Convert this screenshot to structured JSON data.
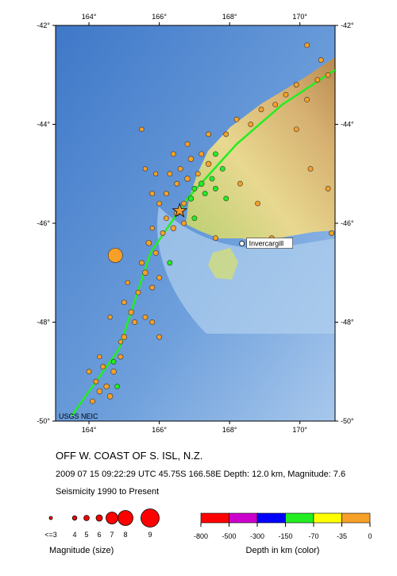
{
  "map": {
    "lon_range": [
      163.05,
      171.0
    ],
    "lat_range": [
      -42,
      -50
    ],
    "lon_ticks": [
      {
        "value": 164,
        "label": "164°"
      },
      {
        "value": 166,
        "label": "166°"
      },
      {
        "value": 168,
        "label": "168°"
      },
      {
        "value": 170,
        "label": "170°"
      }
    ],
    "lat_ticks": [
      {
        "value": -42,
        "label": "-42°"
      },
      {
        "value": -44,
        "label": "-44°"
      },
      {
        "value": -46,
        "label": "-46°"
      },
      {
        "value": -48,
        "label": "-48°"
      },
      {
        "value": -50,
        "label": "-50°"
      }
    ],
    "credit": "USGS NEIC",
    "city": {
      "name": "Invercargill",
      "lon": 168.35,
      "lat": -46.41
    },
    "mainshock": {
      "lon": 166.58,
      "lat": -45.75
    },
    "plate_boundary": [
      [
        163.5,
        -49.9
      ],
      [
        164.85,
        -48.55
      ],
      [
        165.75,
        -46.6
      ],
      [
        166.8,
        -45.5
      ],
      [
        168.2,
        -44.4
      ],
      [
        169.5,
        -43.6
      ],
      [
        171.0,
        -42.9
      ]
    ],
    "quakes": [
      [
        164.1,
        -49.6,
        4.5,
        -15
      ],
      [
        164.3,
        -49.4,
        5,
        -12
      ],
      [
        164.2,
        -49.2,
        4.5,
        -20
      ],
      [
        164.5,
        -49.3,
        5,
        -10
      ],
      [
        164.0,
        -49.0,
        4.5,
        -15
      ],
      [
        164.4,
        -48.9,
        4.5,
        -33
      ],
      [
        164.7,
        -49.0,
        5,
        -12
      ],
      [
        164.6,
        -49.5,
        5,
        -33
      ],
      [
        164.9,
        -48.7,
        4.5,
        -10
      ],
      [
        164.3,
        -48.7,
        4,
        -10
      ],
      [
        164.8,
        -49.3,
        4.5,
        -100
      ],
      [
        164.7,
        -48.8,
        4.5,
        -80
      ],
      [
        165.0,
        -48.3,
        5,
        -12
      ],
      [
        165.3,
        -48.0,
        4.5,
        -15
      ],
      [
        165.2,
        -47.8,
        5,
        -10
      ],
      [
        165.6,
        -47.9,
        4.5,
        -20
      ],
      [
        165.0,
        -47.6,
        4.5,
        -10
      ],
      [
        165.4,
        -47.4,
        4.5,
        -33
      ],
      [
        165.8,
        -47.3,
        4.5,
        -12
      ],
      [
        165.1,
        -47.2,
        4,
        -10
      ],
      [
        165.6,
        -47.0,
        5,
        -15
      ],
      [
        166.0,
        -47.1,
        4.5,
        -10
      ],
      [
        165.5,
        -46.8,
        4.5,
        -33
      ],
      [
        165.9,
        -46.6,
        4.5,
        -12
      ],
      [
        166.3,
        -46.8,
        4.5,
        -80
      ],
      [
        165.7,
        -46.4,
        5,
        -10
      ],
      [
        166.1,
        -46.2,
        4.5,
        -15
      ],
      [
        165.8,
        -46.1,
        4,
        -10
      ],
      [
        166.4,
        -46.1,
        5,
        -12
      ],
      [
        164.75,
        -46.65,
        7.8,
        -12
      ],
      [
        166.5,
        -45.8,
        5,
        -12
      ],
      [
        166.7,
        -45.6,
        4.5,
        -33
      ],
      [
        166.9,
        -45.5,
        5,
        -100
      ],
      [
        167.0,
        -45.3,
        4.5,
        -100
      ],
      [
        167.2,
        -45.2,
        5,
        -100
      ],
      [
        167.1,
        -45.0,
        4.5,
        -12
      ],
      [
        167.3,
        -45.4,
        4.5,
        -100
      ],
      [
        167.5,
        -45.1,
        4.5,
        -100
      ],
      [
        167.4,
        -44.8,
        5,
        -12
      ],
      [
        166.8,
        -45.1,
        5,
        -15
      ],
      [
        166.5,
        -45.2,
        4.5,
        -10
      ],
      [
        166.3,
        -45.0,
        4.5,
        -12
      ],
      [
        166.2,
        -45.4,
        4.5,
        -10
      ],
      [
        166.6,
        -44.9,
        4.5,
        -33
      ],
      [
        166.9,
        -44.7,
        5,
        -12
      ],
      [
        167.2,
        -44.6,
        4.5,
        -10
      ],
      [
        167.6,
        -44.6,
        4.5,
        -100
      ],
      [
        167.8,
        -44.9,
        4.5,
        -100
      ],
      [
        167.6,
        -45.3,
        4.5,
        -80
      ],
      [
        167.9,
        -45.5,
        4.5,
        -100
      ],
      [
        166.0,
        -45.6,
        4.5,
        -10
      ],
      [
        166.2,
        -45.9,
        4.5,
        -15
      ],
      [
        166.7,
        -46.0,
        4.5,
        -12
      ],
      [
        167.0,
        -45.9,
        4.5,
        -100
      ],
      [
        165.9,
        -45.0,
        4,
        -10
      ],
      [
        165.6,
        -44.9,
        4,
        -10
      ],
      [
        165.8,
        -45.4,
        4.5,
        -12
      ],
      [
        166.4,
        -44.6,
        4.5,
        -10
      ],
      [
        166.8,
        -44.4,
        4.5,
        -12
      ],
      [
        167.4,
        -44.2,
        4.5,
        -10
      ],
      [
        167.9,
        -44.2,
        4.5,
        -12
      ],
      [
        168.2,
        -43.9,
        4.5,
        -10
      ],
      [
        168.6,
        -44.0,
        4.5,
        -15
      ],
      [
        168.9,
        -43.7,
        4.5,
        -12
      ],
      [
        169.3,
        -43.6,
        4.5,
        -10
      ],
      [
        169.6,
        -43.4,
        4.5,
        -33
      ],
      [
        169.9,
        -43.2,
        4.5,
        -12
      ],
      [
        170.2,
        -43.5,
        4.5,
        -10
      ],
      [
        170.5,
        -43.1,
        4.5,
        -15
      ],
      [
        170.8,
        -43.0,
        4.5,
        -12
      ],
      [
        170.6,
        -42.7,
        4.5,
        -10
      ],
      [
        170.2,
        -42.4,
        4.5,
        -12
      ],
      [
        169.9,
        -44.1,
        4.5,
        -10
      ],
      [
        170.3,
        -44.9,
        4.5,
        -12
      ],
      [
        170.8,
        -45.3,
        4.5,
        -10
      ],
      [
        168.3,
        -45.2,
        4.5,
        -12
      ],
      [
        168.8,
        -45.6,
        4.5,
        -10
      ],
      [
        167.6,
        -46.3,
        4.5,
        -12
      ],
      [
        170.9,
        -46.2,
        4.5,
        -15
      ],
      [
        169.2,
        -46.3,
        4.5,
        -10
      ],
      [
        165.5,
        -44.1,
        4,
        -10
      ],
      [
        164.9,
        -48.4,
        4,
        -10
      ],
      [
        165.8,
        -48.0,
        4.5,
        -12
      ],
      [
        166.0,
        -48.3,
        4.5,
        -12
      ],
      [
        164.6,
        -47.9,
        4,
        -15
      ]
    ]
  },
  "title": "OFF W. COAST OF S. ISL, N.Z.",
  "details": "2009 07 15 09:22:29 UTC 45.75S 166.58E Depth: 12.0 km, Magnitude: 7.6",
  "period": "Seismicity 1990 to Present",
  "magnitude_legend": {
    "title": "Magnitude (size)",
    "items": [
      {
        "value": 3,
        "label": "<=3"
      },
      4,
      5,
      6,
      7,
      8,
      9
    ]
  },
  "depth_legend": {
    "title": "Depth in km (color)",
    "ticks": [
      -800,
      -500,
      -300,
      -150,
      -70,
      -35,
      0
    ],
    "colors": [
      "#ff0000",
      "#cc00cc",
      "#0000ff",
      "#22ee22",
      "#ffff00",
      "#f7a028"
    ]
  }
}
